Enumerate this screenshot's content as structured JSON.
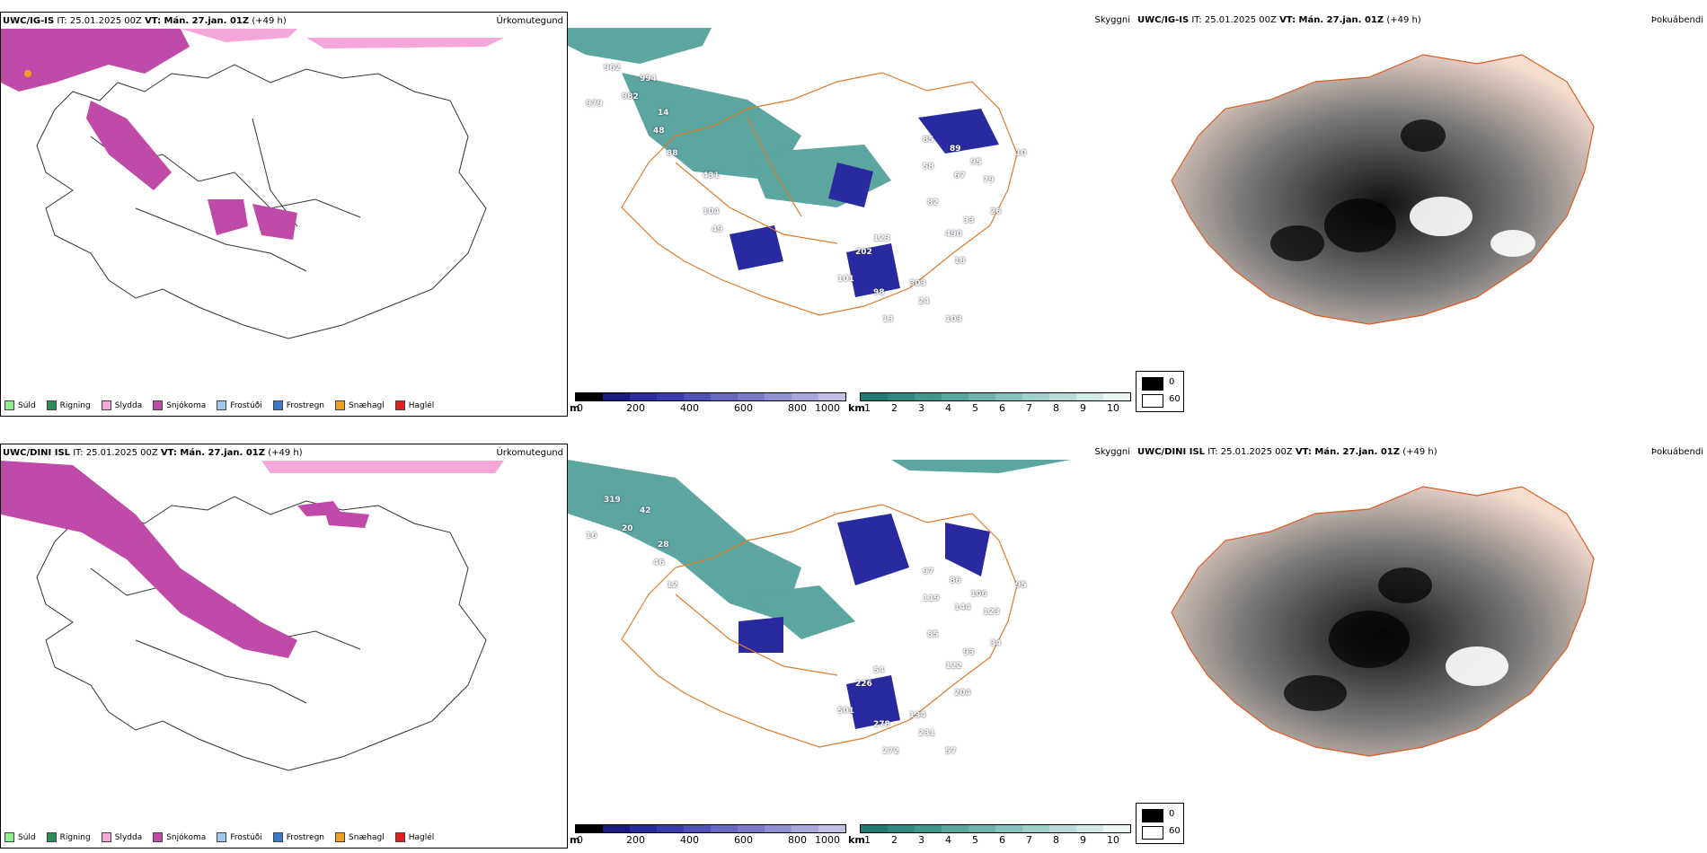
{
  "rows": [
    {
      "model": "UWC/IG-IS",
      "it_label": "IT: 25.01.2025 00Z",
      "vt_label": "VT: Mán. 27.jan. 01Z",
      "lead": "(+49 h)",
      "labels_blue": [
        "85",
        "89",
        "95",
        "10",
        "58",
        "67",
        "79",
        "33",
        "82",
        "490",
        "123",
        "26",
        "18",
        "303",
        "202",
        "98",
        "24",
        "103",
        "101",
        "13"
      ],
      "labels_teal": [
        "962",
        "994",
        "982",
        "14",
        "979",
        "48",
        "88",
        "431",
        "104",
        "49"
      ]
    },
    {
      "model": "UWC/DINI ISL",
      "it_label": "IT: 25.01.2025 00Z",
      "vt_label": "VT: Mán. 27.jan. 01Z",
      "lead": "(+49 h)",
      "labels_blue": [
        "97",
        "86",
        "106",
        "95",
        "119",
        "144",
        "123",
        "93",
        "85",
        "122",
        "54",
        "34"
      ],
      "labels_teal": [
        "204",
        "134",
        "226",
        "278",
        "231",
        "57",
        "501",
        "272",
        "319",
        "42",
        "20",
        "28",
        "16",
        "46",
        "12"
      ]
    }
  ],
  "titles": {
    "precip_type": "Úrkomutegund",
    "visibility": "Skyggni",
    "fog_index": "Þokuábendi"
  },
  "precip_legend": [
    {
      "label": "Súld",
      "color": "#90ee90"
    },
    {
      "label": "Rigning",
      "color": "#2e8b57"
    },
    {
      "label": "Slydda",
      "color": "#f4a7d8"
    },
    {
      "label": "Snjókoma",
      "color": "#c04aa8"
    },
    {
      "label": "Frostúði",
      "color": "#9ec8f0"
    },
    {
      "label": "Frostregn",
      "color": "#3a7bc8"
    },
    {
      "label": "Snæhagl",
      "color": "#f0a020"
    },
    {
      "label": "Haglél",
      "color": "#e02020"
    }
  ],
  "visibility_legend": {
    "m_unit": "m",
    "m_ticks": [
      "0",
      "200",
      "400",
      "600",
      "800",
      "1000"
    ],
    "m_colors": [
      "#000000",
      "#1a1a80",
      "#2a2aa0",
      "#3a3ab0",
      "#5050b8",
      "#6868c0",
      "#7a7ac8",
      "#9090d0",
      "#a8a8da",
      "#c0c0e6"
    ],
    "km_unit": "km",
    "km_ticks": [
      "1",
      "2",
      "3",
      "4",
      "5",
      "6",
      "7",
      "8",
      "9",
      "10"
    ],
    "km_colors": [
      "#1f7a72",
      "#2e8a80",
      "#3f978e",
      "#55a69d",
      "#6cb4ac",
      "#85c2bb",
      "#9fd0ca",
      "#b8ddd8",
      "#d2eae7",
      "#ecf6f5"
    ]
  },
  "fog_legend": {
    "top": "0",
    "bottom": "60"
  }
}
